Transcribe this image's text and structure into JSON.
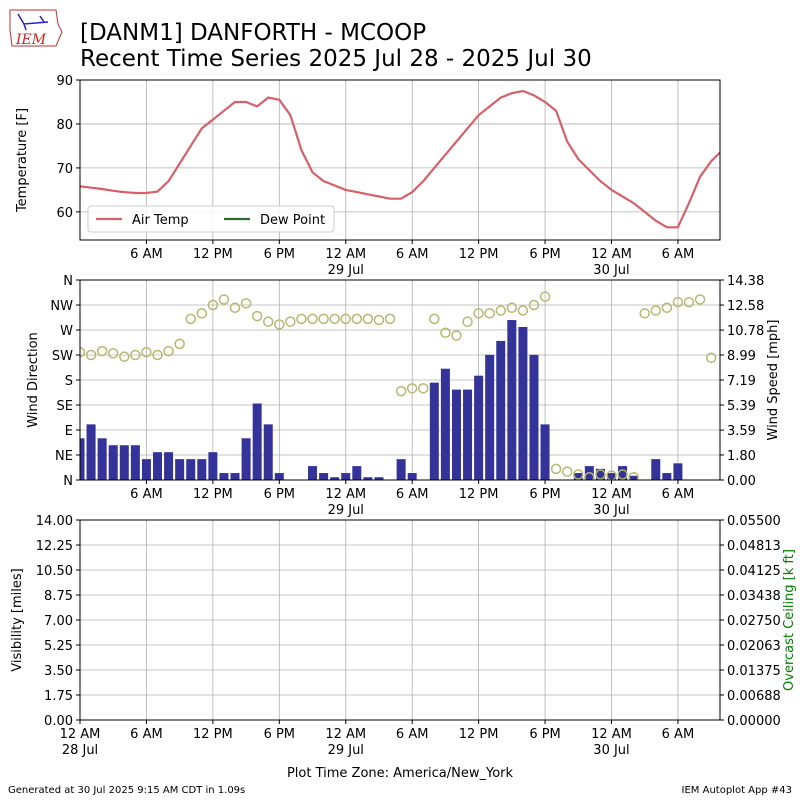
{
  "header": {
    "logo": "IEM",
    "title": [
      "[DANM1] DANFORTH - MCOOP",
      "Recent Time Series 2025 Jul 28 - 2025 Jul 30"
    ]
  },
  "footer": {
    "left": "Generated at 30 Jul 2025 9:15 AM CDT in 1.09s",
    "right": "IEM Autoplot App #43"
  },
  "chart_data": [
    {
      "type": "line",
      "ylabel": "Temperature [F]",
      "grid": true,
      "legend": "lower-left",
      "xlim": [
        0,
        57.8
      ],
      "ylim": [
        53.6,
        90
      ],
      "yticks": [
        60,
        70,
        80,
        90
      ],
      "xticks": [
        {
          "value": 6,
          "label": "6 AM"
        },
        {
          "value": 12,
          "label": "12 PM"
        },
        {
          "value": 18,
          "label": "6 PM"
        },
        {
          "value": 24,
          "label": "12 AM\n29 Jul"
        },
        {
          "value": 30,
          "label": "6 AM"
        },
        {
          "value": 36,
          "label": "12 PM"
        },
        {
          "value": 42,
          "label": "6 PM"
        },
        {
          "value": 48,
          "label": "12 AM\n30 Jul"
        },
        {
          "value": 54,
          "label": "6 AM"
        }
      ],
      "x": [
        0,
        1,
        2,
        3,
        4,
        5,
        6,
        7,
        8,
        9,
        10,
        11,
        12,
        13,
        14,
        15,
        16,
        17,
        18,
        19,
        20,
        21,
        22,
        23,
        24,
        25,
        26,
        27,
        28,
        29,
        30,
        31,
        32,
        33,
        34,
        35,
        36,
        37,
        38,
        39,
        40,
        41,
        42,
        43,
        44,
        45,
        46,
        47,
        48,
        49,
        50,
        51,
        52,
        53,
        54,
        55,
        56,
        57,
        57.8
      ],
      "series": [
        {
          "name": "Air Temp",
          "color": "#d6606a",
          "values": [
            65.8,
            65.5,
            65.2,
            64.8,
            64.5,
            64.3,
            64.3,
            64.6,
            67,
            71,
            75,
            79,
            81,
            83,
            85,
            85,
            84,
            86,
            85.5,
            82,
            74,
            69,
            67,
            66,
            65,
            64.5,
            64,
            63.5,
            63,
            63,
            64.5,
            67,
            70,
            73,
            76,
            79,
            82,
            84,
            86,
            87,
            87.5,
            86.5,
            85,
            83,
            76,
            72,
            69.5,
            67,
            65,
            63.5,
            62,
            60,
            58,
            56.5,
            56.5,
            62,
            68,
            71.5,
            73.5
          ]
        },
        {
          "name": "Dew Point",
          "color": "#2e6b30",
          "values": [
            null,
            null,
            null,
            null,
            null,
            null,
            null,
            null,
            null,
            null,
            null,
            null,
            null,
            null,
            null,
            null,
            null,
            null,
            null,
            null,
            null,
            null,
            null,
            null,
            null,
            null,
            null,
            null,
            null,
            null,
            null,
            null,
            null,
            null,
            null,
            null,
            null,
            null,
            null,
            null,
            null,
            null,
            null,
            null,
            null,
            null,
            null,
            null,
            null,
            null,
            null,
            null,
            null,
            null,
            null,
            null,
            null,
            null,
            null
          ]
        }
      ]
    },
    {
      "type": "wind",
      "ylabel": "Wind Direction",
      "y2label": "Wind Speed [mph]",
      "grid": true,
      "xlim": [
        0,
        57.8
      ],
      "ylim": [
        0,
        360
      ],
      "y2lim": [
        0,
        14.38
      ],
      "yticks": [
        {
          "value": 0,
          "label": "N"
        },
        {
          "value": 45,
          "label": "NE"
        },
        {
          "value": 90,
          "label": "E"
        },
        {
          "value": 135,
          "label": "SE"
        },
        {
          "value": 180,
          "label": "S"
        },
        {
          "value": 225,
          "label": "SW"
        },
        {
          "value": 270,
          "label": "W"
        },
        {
          "value": 315,
          "label": "NW"
        },
        {
          "value": 360,
          "label": "N"
        }
      ],
      "y2ticks": [
        {
          "value": 0,
          "label": "0.00"
        },
        {
          "value": 1.8,
          "label": "1.80"
        },
        3.59,
        5.39,
        7.19,
        8.99,
        10.78,
        12.58,
        14.38
      ],
      "xticks": [
        {
          "value": 6,
          "label": "6 AM"
        },
        {
          "value": 12,
          "label": "12 PM"
        },
        {
          "value": 18,
          "label": "6 PM"
        },
        {
          "value": 24,
          "label": "12 AM\n29 Jul"
        },
        {
          "value": 30,
          "label": "6 AM"
        },
        {
          "value": 36,
          "label": "12 PM"
        },
        {
          "value": 42,
          "label": "6 PM"
        },
        {
          "value": 48,
          "label": "12 AM\n30 Jul"
        },
        {
          "value": 54,
          "label": "6 AM"
        }
      ],
      "x": [
        0,
        1,
        2,
        3,
        4,
        5,
        6,
        7,
        8,
        9,
        10,
        11,
        12,
        13,
        14,
        15,
        16,
        17,
        18,
        19,
        20,
        21,
        22,
        23,
        24,
        25,
        26,
        27,
        28,
        29,
        30,
        31,
        32,
        33,
        34,
        35,
        36,
        37,
        38,
        39,
        40,
        41,
        42,
        43,
        44,
        45,
        46,
        47,
        48,
        49,
        50,
        51,
        52,
        53,
        54,
        55,
        56,
        57
      ],
      "series": [
        {
          "color": "#b5b86f",
          "values": [
            230,
            225,
            232,
            228,
            222,
            225,
            230,
            225,
            232,
            245,
            290,
            300,
            315,
            325,
            310,
            318,
            295,
            285,
            280,
            285,
            290,
            290,
            290,
            290,
            290,
            290,
            290,
            288,
            290,
            160,
            165,
            165,
            290,
            265,
            260,
            285,
            300,
            300,
            305,
            310,
            305,
            315,
            330,
            20,
            15,
            10,
            5,
            10,
            8,
            10,
            5,
            300,
            305,
            310,
            320,
            320,
            325,
            220
          ]
        },
        {
          "color": "#333399",
          "axis": "y2",
          "values": [
            3,
            4,
            3,
            2.5,
            2.5,
            2.5,
            1.5,
            2,
            2,
            1.5,
            1.5,
            1.5,
            2,
            0.5,
            0.5,
            3,
            5.5,
            4,
            0.5,
            0,
            0,
            1,
            0.5,
            0.2,
            0.5,
            1,
            0.2,
            0.2,
            0,
            1.5,
            0.5,
            0,
            7,
            8,
            6.5,
            6.5,
            7.5,
            9,
            10,
            11.5,
            11,
            9,
            4,
            0,
            0,
            0.5,
            1,
            0.8,
            0.5,
            1,
            0.3,
            0,
            1.5,
            0.5,
            1.2,
            0,
            0,
            0
          ]
        }
      ]
    },
    {
      "type": "line",
      "ylabel": "Visibility [miles]",
      "y2label": "Overcast Ceiling [k ft]",
      "y2color": "#008000",
      "xlabel": "Plot Time Zone: America/New_York",
      "grid": true,
      "xlim": [
        0,
        57.8
      ],
      "ylim": [
        0,
        14
      ],
      "y2lim": [
        0,
        0.055
      ],
      "yticks": [
        {
          "value": 0,
          "label": "0.00"
        },
        1.75,
        {
          "value": 3.5,
          "label": "3.50"
        },
        5.25,
        {
          "value": 7,
          "label": "7.00"
        },
        8.75,
        {
          "value": 10.5,
          "label": "10.50"
        },
        12.25,
        {
          "value": 14,
          "label": "14.00"
        }
      ],
      "y2ticks": [
        {
          "value": 0,
          "label": "0.00000"
        },
        0.00688,
        0.01375,
        0.02063,
        {
          "value": 0.0275,
          "label": "0.02750"
        },
        0.03438,
        0.04125,
        0.04813,
        {
          "value": 0.055,
          "label": "0.05500"
        }
      ],
      "xticks": [
        {
          "value": 0,
          "label": "12 AM\n28 Jul"
        },
        {
          "value": 6,
          "label": "6 AM"
        },
        {
          "value": 12,
          "label": "12 PM"
        },
        {
          "value": 18,
          "label": "6 PM"
        },
        {
          "value": 24,
          "label": "12 AM\n29 Jul"
        },
        {
          "value": 30,
          "label": "6 AM"
        },
        {
          "value": 36,
          "label": "12 PM"
        },
        {
          "value": 42,
          "label": "6 PM"
        },
        {
          "value": 48,
          "label": "12 AM\n30 Jul"
        },
        {
          "value": 54,
          "label": "6 AM"
        }
      ],
      "series": []
    }
  ]
}
